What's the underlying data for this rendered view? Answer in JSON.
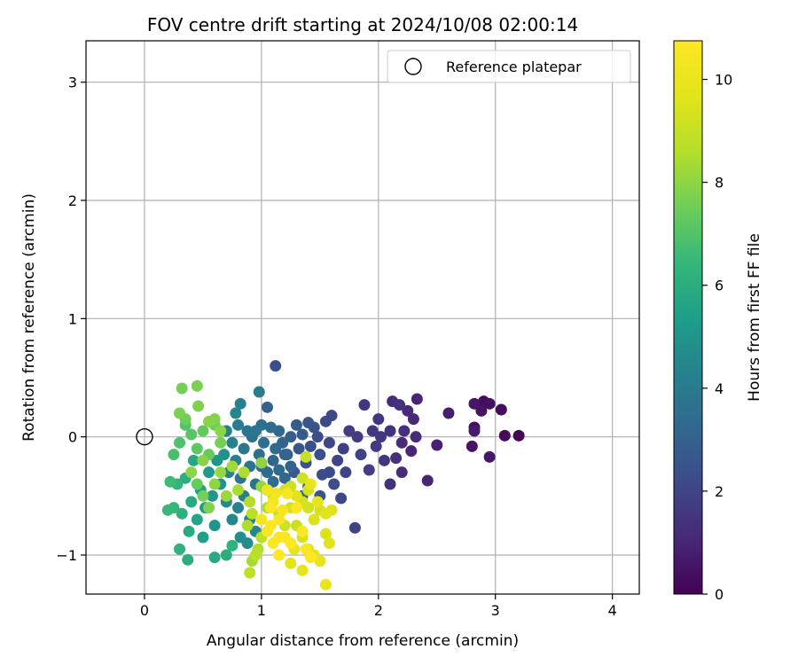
{
  "chart_data": {
    "type": "scatter",
    "title": "FOV centre drift starting at 2024/10/08 02:00:14",
    "xlabel": "Angular distance from reference (arcmin)",
    "ylabel": "Rotation from reference (arcmin)",
    "xlim": [
      -0.5,
      4.23
    ],
    "ylim": [
      -1.33,
      3.35
    ],
    "xticks": [
      0,
      1,
      2,
      3,
      4
    ],
    "yticks": [
      -1,
      0,
      1,
      2,
      3
    ],
    "grid": true,
    "legend": {
      "placement": "top-right",
      "entries": [
        "Reference platepar"
      ]
    },
    "reference_point": {
      "name": "Reference platepar",
      "x": 0,
      "y": 0
    },
    "colorbar": {
      "label": "Hours from first FF file",
      "min": 0,
      "max": 10.75,
      "ticks": [
        0,
        2,
        4,
        6,
        8,
        10
      ],
      "colormap": "viridis"
    },
    "points": [
      [
        3.2,
        0.01,
        0.1
      ],
      [
        3.08,
        0.01,
        0.2
      ],
      [
        3.05,
        0.23,
        0.3
      ],
      [
        2.95,
        0.28,
        0.4
      ],
      [
        2.9,
        0.3,
        0.3
      ],
      [
        2.88,
        0.22,
        0.5
      ],
      [
        2.82,
        0.28,
        0.6
      ],
      [
        2.82,
        0.08,
        0.4
      ],
      [
        2.82,
        0.05,
        0.7
      ],
      [
        2.8,
        -0.08,
        0.5
      ],
      [
        2.95,
        -0.17,
        0.6
      ],
      [
        2.6,
        0.2,
        0.8
      ],
      [
        2.5,
        -0.07,
        0.9
      ],
      [
        2.42,
        -0.37,
        1.0
      ],
      [
        2.33,
        0.32,
        1.0
      ],
      [
        2.3,
        0.15,
        1.1
      ],
      [
        2.32,
        0.0,
        1.2
      ],
      [
        2.28,
        -0.12,
        1.0
      ],
      [
        2.25,
        0.22,
        1.1
      ],
      [
        2.22,
        0.05,
        1.3
      ],
      [
        2.2,
        -0.05,
        1.2
      ],
      [
        2.18,
        0.27,
        1.4
      ],
      [
        2.15,
        -0.18,
        1.3
      ],
      [
        2.12,
        0.3,
        1.2
      ],
      [
        2.1,
        0.05,
        1.4
      ],
      [
        2.05,
        -0.2,
        1.5
      ],
      [
        2.02,
        0.0,
        1.6
      ],
      [
        2.0,
        0.15,
        1.5
      ],
      [
        1.98,
        -0.08,
        1.7
      ],
      [
        1.95,
        0.05,
        1.6
      ],
      [
        1.92,
        -0.28,
        1.8
      ],
      [
        1.88,
        0.27,
        1.5
      ],
      [
        1.85,
        -0.15,
        1.9
      ],
      [
        1.82,
        0.0,
        1.7
      ],
      [
        1.8,
        -0.77,
        2.0
      ],
      [
        1.75,
        0.05,
        1.8
      ],
      [
        1.72,
        -0.3,
        2.0
      ],
      [
        1.7,
        -0.1,
        1.9
      ],
      [
        2.2,
        -0.3,
        1.2
      ],
      [
        2.1,
        -0.4,
        1.4
      ],
      [
        1.68,
        -0.52,
        2.1
      ],
      [
        1.65,
        -0.2,
        2.0
      ],
      [
        1.6,
        0.18,
        2.2
      ],
      [
        1.58,
        -0.05,
        2.1
      ],
      [
        1.55,
        0.13,
        2.2
      ],
      [
        1.52,
        -0.32,
        2.3
      ],
      [
        1.5,
        -0.15,
        2.4
      ],
      [
        1.48,
        0.0,
        2.3
      ],
      [
        1.45,
        0.08,
        2.5
      ],
      [
        1.42,
        -0.08,
        2.4
      ],
      [
        1.4,
        0.12,
        2.6
      ],
      [
        1.38,
        -0.22,
        2.5
      ],
      [
        1.35,
        0.02,
        2.7
      ],
      [
        1.32,
        -0.1,
        2.6
      ],
      [
        1.3,
        0.1,
        2.8
      ],
      [
        1.28,
        -0.3,
        2.7
      ],
      [
        1.25,
        0.0,
        2.9
      ],
      [
        1.22,
        -0.15,
        2.8
      ],
      [
        1.12,
        0.6,
        2.4
      ],
      [
        1.05,
        0.25,
        3.0
      ],
      [
        1.5,
        -0.5,
        2.6
      ],
      [
        1.4,
        -0.42,
        2.8
      ],
      [
        1.35,
        -0.5,
        3.0
      ],
      [
        1.58,
        -0.3,
        2.2
      ],
      [
        1.62,
        -0.4,
        2.3
      ],
      [
        1.18,
        -0.05,
        3.1
      ],
      [
        1.15,
        0.05,
        3.2
      ],
      [
        1.12,
        -0.1,
        3.3
      ],
      [
        1.1,
        -0.2,
        3.2
      ],
      [
        1.08,
        0.08,
        3.4
      ],
      [
        1.05,
        -0.3,
        3.3
      ],
      [
        1.02,
        -0.05,
        3.5
      ],
      [
        1.0,
        0.1,
        3.6
      ],
      [
        0.98,
        -0.15,
        3.5
      ],
      [
        0.95,
        -0.4,
        3.7
      ],
      [
        0.92,
        0.0,
        3.6
      ],
      [
        0.9,
        -0.25,
        3.8
      ],
      [
        0.88,
        0.05,
        3.7
      ],
      [
        0.85,
        -0.1,
        3.9
      ],
      [
        0.82,
        -0.35,
        3.8
      ],
      [
        0.8,
        0.1,
        4.0
      ],
      [
        1.2,
        -0.15,
        3.1
      ],
      [
        1.15,
        -0.28,
        3.3
      ],
      [
        1.1,
        -0.38,
        3.4
      ],
      [
        1.05,
        -0.45,
        3.6
      ],
      [
        1.25,
        -0.25,
        3.0
      ],
      [
        1.2,
        -0.35,
        3.2
      ],
      [
        1.0,
        -0.25,
        3.4
      ],
      [
        0.95,
        0.05,
        3.8
      ],
      [
        0.78,
        -0.2,
        4.1
      ],
      [
        0.75,
        -0.05,
        4.2
      ],
      [
        0.72,
        -0.3,
        4.3
      ],
      [
        0.7,
        0.05,
        4.4
      ],
      [
        0.85,
        -0.5,
        4.2
      ],
      [
        0.8,
        -0.6,
        4.3
      ],
      [
        0.75,
        -0.7,
        4.5
      ],
      [
        0.7,
        -0.55,
        4.6
      ],
      [
        0.9,
        -0.7,
        4.4
      ],
      [
        0.95,
        -0.8,
        4.5
      ],
      [
        0.88,
        -0.9,
        4.7
      ],
      [
        0.82,
        -0.85,
        4.8
      ],
      [
        0.98,
        0.38,
        4.0
      ],
      [
        0.82,
        0.28,
        4.2
      ],
      [
        0.78,
        0.2,
        4.5
      ],
      [
        0.68,
        -0.15,
        4.8
      ],
      [
        0.65,
        -0.4,
        4.9
      ],
      [
        0.62,
        -0.2,
        5.0
      ],
      [
        0.6,
        -0.75,
        5.0
      ],
      [
        0.58,
        -0.5,
        5.1
      ],
      [
        0.55,
        -0.3,
        5.2
      ],
      [
        0.52,
        -0.6,
        5.3
      ],
      [
        0.5,
        -0.85,
        5.4
      ],
      [
        0.48,
        -0.45,
        5.5
      ],
      [
        0.45,
        -0.7,
        5.6
      ],
      [
        0.42,
        -0.2,
        5.7
      ],
      [
        0.4,
        -0.55,
        5.8
      ],
      [
        0.38,
        -0.8,
        5.9
      ],
      [
        0.35,
        -0.35,
        6.0
      ],
      [
        0.32,
        -0.65,
        6.1
      ],
      [
        0.3,
        -0.95,
        6.2
      ],
      [
        0.37,
        -1.04,
        6.0
      ],
      [
        0.28,
        -0.4,
        6.3
      ],
      [
        0.25,
        -0.6,
        6.4
      ],
      [
        0.2,
        -0.62,
        6.5
      ],
      [
        0.22,
        -0.38,
        6.6
      ],
      [
        0.6,
        -1.02,
        5.8
      ],
      [
        0.7,
        -1.0,
        6.0
      ],
      [
        0.75,
        -0.92,
        6.2
      ],
      [
        0.25,
        -0.15,
        6.8
      ],
      [
        0.3,
        -0.05,
        6.9
      ],
      [
        0.35,
        0.1,
        7.0
      ],
      [
        0.4,
        0.02,
        7.1
      ],
      [
        0.45,
        -0.1,
        7.2
      ],
      [
        0.5,
        0.05,
        7.3
      ],
      [
        0.55,
        -0.15,
        7.4
      ],
      [
        0.6,
        0.1,
        7.5
      ],
      [
        0.65,
        -0.05,
        7.6
      ],
      [
        0.3,
        0.2,
        7.7
      ],
      [
        0.32,
        0.41,
        7.6
      ],
      [
        0.45,
        0.43,
        7.7
      ],
      [
        0.46,
        0.26,
        7.8
      ],
      [
        0.35,
        0.15,
        7.5
      ],
      [
        0.55,
        0.13,
        7.9
      ],
      [
        0.6,
        0.15,
        7.8
      ],
      [
        0.65,
        0.05,
        8.0
      ],
      [
        0.5,
        -0.2,
        7.9
      ],
      [
        0.4,
        -0.3,
        8.0
      ],
      [
        0.45,
        -0.4,
        7.4
      ],
      [
        0.5,
        -0.5,
        7.6
      ],
      [
        0.55,
        -0.6,
        7.8
      ],
      [
        0.6,
        -0.4,
        8.0
      ],
      [
        0.65,
        -0.3,
        8.1
      ],
      [
        0.7,
        -0.5,
        8.2
      ],
      [
        0.75,
        -0.25,
        8.3
      ],
      [
        0.8,
        -0.45,
        8.4
      ],
      [
        0.85,
        -0.3,
        8.5
      ],
      [
        0.9,
        -0.55,
        8.6
      ],
      [
        0.88,
        -0.75,
        8.5
      ],
      [
        0.92,
        -0.65,
        8.7
      ],
      [
        0.97,
        -0.95,
        8.6
      ],
      [
        1.0,
        -0.85,
        8.8
      ],
      [
        0.95,
        -1.0,
        8.7
      ],
      [
        0.9,
        -1.15,
        8.8
      ],
      [
        0.92,
        -1.05,
        8.4
      ],
      [
        1.05,
        -0.6,
        8.5
      ],
      [
        1.0,
        -0.42,
        8.2
      ],
      [
        1.0,
        -0.22,
        8.0
      ],
      [
        1.1,
        -0.5,
        8.9
      ],
      [
        1.15,
        -0.65,
        9.0
      ],
      [
        1.2,
        -0.75,
        9.2
      ],
      [
        1.25,
        -0.6,
        9.3
      ],
      [
        1.3,
        -0.75,
        9.1
      ],
      [
        1.35,
        -0.55,
        9.4
      ],
      [
        1.4,
        -0.6,
        9.3
      ],
      [
        1.45,
        -0.7,
        9.5
      ],
      [
        1.5,
        -0.62,
        9.4
      ],
      [
        1.55,
        -0.65,
        9.6
      ],
      [
        1.6,
        -0.62,
        9.5
      ],
      [
        1.35,
        -0.35,
        9.2
      ],
      [
        1.4,
        -0.45,
        9.3
      ],
      [
        1.38,
        -0.17,
        9.0
      ],
      [
        1.25,
        -0.42,
        9.1
      ],
      [
        1.2,
        -0.45,
        9.4
      ],
      [
        1.3,
        -0.5,
        9.6
      ],
      [
        1.35,
        -0.85,
        9.4
      ],
      [
        1.4,
        -0.95,
        9.6
      ],
      [
        1.45,
        -1.0,
        9.7
      ],
      [
        1.5,
        -1.05,
        9.8
      ],
      [
        1.55,
        -1.25,
        9.9
      ],
      [
        1.35,
        -1.13,
        9.7
      ],
      [
        1.25,
        -1.07,
        9.6
      ],
      [
        1.55,
        -0.82,
        9.5
      ],
      [
        1.58,
        -0.9,
        9.6
      ],
      [
        1.48,
        -0.55,
        9.8
      ],
      [
        1.42,
        -0.4,
        9.9
      ],
      [
        1.28,
        -0.95,
        9.8
      ],
      [
        1.05,
        -0.45,
        10.2
      ],
      [
        1.1,
        -0.55,
        10.4
      ],
      [
        1.15,
        -0.7,
        10.5
      ],
      [
        1.2,
        -0.85,
        10.6
      ],
      [
        1.25,
        -0.9,
        10.7
      ],
      [
        1.0,
        -0.7,
        10.3
      ],
      [
        1.05,
        -0.8,
        10.5
      ],
      [
        1.1,
        -0.9,
        10.6
      ],
      [
        1.15,
        -1.0,
        10.7
      ],
      [
        1.08,
        -0.6,
        10.6
      ],
      [
        1.12,
        -0.48,
        10.3
      ],
      [
        1.18,
        -0.62,
        10.4
      ],
      [
        1.22,
        -0.48,
        10.5
      ],
      [
        1.3,
        -0.6,
        10.6
      ],
      [
        1.35,
        -0.8,
        10.7
      ],
      [
        1.38,
        -0.95,
        10.6
      ],
      [
        1.42,
        -1.02,
        10.7
      ],
      [
        1.08,
        -0.75,
        10.8
      ],
      [
        1.15,
        -0.85,
        10.75
      ]
    ]
  }
}
